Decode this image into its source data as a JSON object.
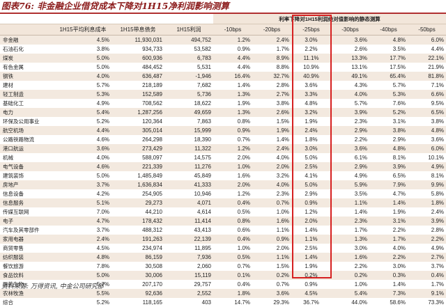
{
  "title": "图表76:  非金融企业借贷成本下降对1H15净利润影响测算",
  "source": "资料来源: 万得资讯, 中金公司研究部",
  "group_header": "利率下降对1H15利润绝对值影响的静态测算",
  "columns": [
    "",
    "1H15平均利息成本",
    "1H15带息债务",
    "1H15利润",
    "-10bps",
    "-20bps",
    "-25bps",
    "-30bps",
    "-40bps",
    "-50bps"
  ],
  "rows": [
    [
      "非金融",
      "4.5%",
      "11,930,031",
      "494,752",
      "1.2%",
      "2.4%",
      "3.0%",
      "3.6%",
      "4.8%",
      "6.0%"
    ],
    [
      "石油石化",
      "3.8%",
      "934,733",
      "53,582",
      "0.9%",
      "1.7%",
      "2.2%",
      "2.6%",
      "3.5%",
      "4.4%"
    ],
    [
      "煤炭",
      "5.0%",
      "600,936",
      "6,783",
      "4.4%",
      "8.9%",
      "11.1%",
      "13.3%",
      "17.7%",
      "22.1%"
    ],
    [
      "有色金属",
      "5.0%",
      "484,452",
      "5,531",
      "4.4%",
      "8.8%",
      "10.9%",
      "13.1%",
      "17.5%",
      "21.9%"
    ],
    [
      "钢铁",
      "4.0%",
      "636,487",
      "-1,946",
      "16.4%",
      "32.7%",
      "40.9%",
      "49.1%",
      "65.4%",
      "81.8%"
    ],
    [
      "建材",
      "5.7%",
      "218,189",
      "7,682",
      "1.4%",
      "2.8%",
      "3.6%",
      "4.3%",
      "5.7%",
      "7.1%"
    ],
    [
      "轻工制造",
      "5.3%",
      "152,589",
      "5,736",
      "1.3%",
      "2.7%",
      "3.3%",
      "4.0%",
      "5.3%",
      "6.6%"
    ],
    [
      "基础化工",
      "4.9%",
      "708,562",
      "18,622",
      "1.9%",
      "3.8%",
      "4.8%",
      "5.7%",
      "7.6%",
      "9.5%"
    ],
    [
      "电力",
      "5.4%",
      "1,287,256",
      "49,659",
      "1.3%",
      "2.6%",
      "3.2%",
      "3.9%",
      "5.2%",
      "6.5%"
    ],
    [
      "环保及公用事业",
      "5.2%",
      "120,364",
      "7,863",
      "0.8%",
      "1.5%",
      "1.9%",
      "2.3%",
      "3.1%",
      "3.8%"
    ],
    [
      "航空机场",
      "4.4%",
      "305,014",
      "15,999",
      "0.9%",
      "1.9%",
      "2.4%",
      "2.9%",
      "3.8%",
      "4.8%"
    ],
    [
      "公路铁路物流",
      "4.6%",
      "264,298",
      "18,390",
      "0.7%",
      "1.4%",
      "1.8%",
      "2.2%",
      "2.9%",
      "3.6%"
    ],
    [
      "港口航运",
      "3.6%",
      "273,429",
      "11,322",
      "1.2%",
      "2.4%",
      "3.0%",
      "3.6%",
      "4.8%",
      "6.0%"
    ],
    [
      "机械",
      "4.0%",
      "588,097",
      "14,575",
      "2.0%",
      "4.0%",
      "5.0%",
      "6.1%",
      "8.1%",
      "10.1%"
    ],
    [
      "电气设备",
      "4.6%",
      "221,339",
      "11,276",
      "1.0%",
      "2.0%",
      "2.5%",
      "2.9%",
      "3.9%",
      "4.9%"
    ],
    [
      "建筑装饰",
      "5.0%",
      "1,485,849",
      "45,849",
      "1.6%",
      "3.2%",
      "4.1%",
      "4.9%",
      "6.5%",
      "8.1%"
    ],
    [
      "房地产",
      "3.7%",
      "1,636,834",
      "41,333",
      "2.0%",
      "4.0%",
      "5.0%",
      "5.9%",
      "7.9%",
      "9.9%"
    ],
    [
      "信息设备",
      "4.2%",
      "254,905",
      "10,946",
      "1.2%",
      "2.3%",
      "2.9%",
      "3.5%",
      "4.7%",
      "5.8%"
    ],
    [
      "信息服务",
      "5.1%",
      "29,273",
      "4,071",
      "0.4%",
      "0.7%",
      "0.9%",
      "1.1%",
      "1.4%",
      "1.8%"
    ],
    [
      "传媒互联网",
      "7.0%",
      "44,210",
      "4,614",
      "0.5%",
      "1.0%",
      "1.2%",
      "1.4%",
      "1.9%",
      "2.4%"
    ],
    [
      "电子",
      "4.7%",
      "178,432",
      "11,414",
      "0.8%",
      "1.6%",
      "2.0%",
      "2.3%",
      "3.1%",
      "3.9%"
    ],
    [
      "汽车及其零部件",
      "3.7%",
      "488,312",
      "43,413",
      "0.6%",
      "1.1%",
      "1.4%",
      "1.7%",
      "2.2%",
      "2.8%"
    ],
    [
      "家用电器",
      "2.4%",
      "191,263",
      "22,139",
      "0.4%",
      "0.9%",
      "1.1%",
      "1.3%",
      "1.7%",
      "2.2%"
    ],
    [
      "商贸零售",
      "4.5%",
      "234,974",
      "11,895",
      "1.0%",
      "2.0%",
      "2.5%",
      "3.0%",
      "4.0%",
      "4.9%"
    ],
    [
      "纺织服装",
      "4.8%",
      "86,159",
      "7,936",
      "0.5%",
      "1.1%",
      "1.4%",
      "1.6%",
      "2.2%",
      "2.7%"
    ],
    [
      "餐饮旅游",
      "7.8%",
      "30,508",
      "2,060",
      "0.7%",
      "1.5%",
      "1.9%",
      "2.2%",
      "3.0%",
      "3.7%"
    ],
    [
      "食品饮料",
      "5.0%",
      "30,006",
      "15,119",
      "0.1%",
      "0.2%",
      "0.2%",
      "0.2%",
      "0.3%",
      "0.4%"
    ],
    [
      "医药生物",
      "5.7%",
      "207,170",
      "29,757",
      "0.4%",
      "0.7%",
      "0.9%",
      "1.0%",
      "1.4%",
      "1.7%"
    ],
    [
      "农林牧渔",
      "5.5%",
      "92,636",
      "2,552",
      "1.8%",
      "3.6%",
      "4.5%",
      "5.4%",
      "7.3%",
      "9.1%"
    ],
    [
      "综合",
      "5.2%",
      "118,165",
      "403",
      "14.7%",
      "29.3%",
      "36.7%",
      "44.0%",
      "58.6%",
      "73.3%"
    ]
  ]
}
